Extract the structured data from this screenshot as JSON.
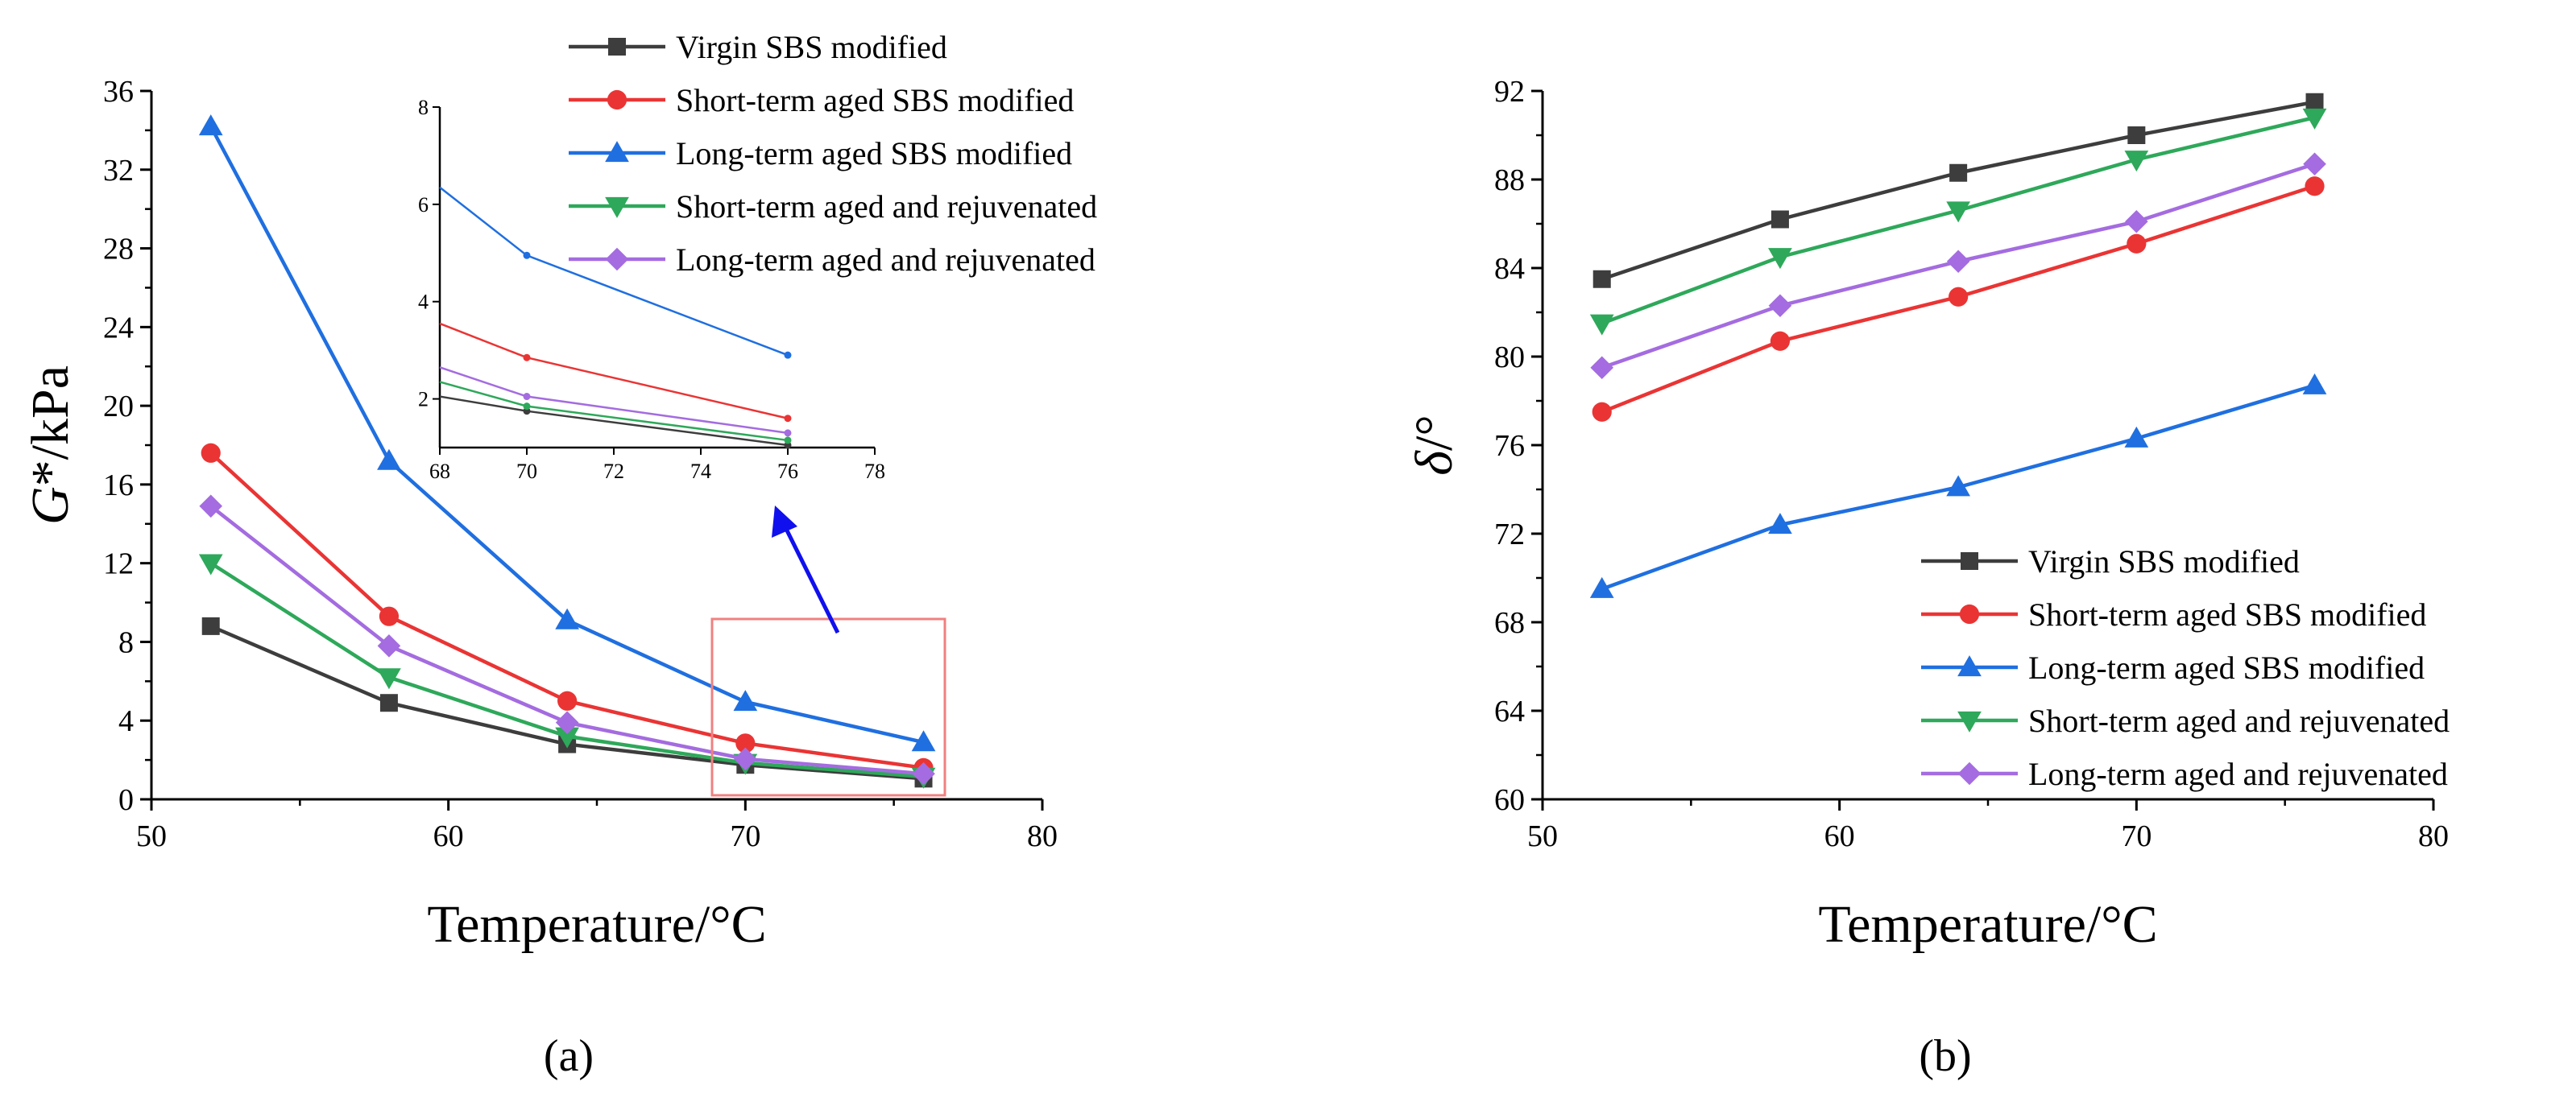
{
  "chart_data": [
    {
      "id": "a",
      "type": "line",
      "panel_label": "(a)",
      "xlabel": "Temperature/°C",
      "ylabel_italic": "G",
      "ylabel_rest": "*/kPa",
      "xlim": [
        50,
        80
      ],
      "ylim": [
        0,
        36
      ],
      "xticks": [
        50,
        60,
        70,
        80
      ],
      "yticks": [
        0,
        4,
        8,
        12,
        16,
        20,
        24,
        28,
        32,
        36
      ],
      "x": [
        52,
        58,
        64,
        70,
        76
      ],
      "legend_position": "top-right",
      "series": [
        {
          "name": "Virgin SBS modified",
          "color": "#3d3d3d",
          "marker": "square",
          "values": [
            8.8,
            4.9,
            2.8,
            1.75,
            1.05
          ]
        },
        {
          "name": "Short-term aged SBS modified",
          "color": "#ea3434",
          "marker": "circle",
          "values": [
            17.6,
            9.3,
            5.0,
            2.85,
            1.6
          ]
        },
        {
          "name": "Long-term aged SBS modified",
          "color": "#1f6fe0",
          "marker": "triangle-up",
          "values": [
            34.2,
            17.2,
            9.1,
            4.95,
            2.9
          ]
        },
        {
          "name": "Short-term aged and rejuvenated",
          "color": "#2ea85a",
          "marker": "triangle-down",
          "values": [
            12.0,
            6.2,
            3.2,
            1.85,
            1.15
          ]
        },
        {
          "name": "Long-term aged and rejuvenated",
          "color": "#a46ce0",
          "marker": "diamond",
          "values": [
            14.9,
            7.8,
            3.9,
            2.05,
            1.3
          ]
        }
      ],
      "inset": {
        "xlim": [
          68,
          78
        ],
        "ylim": [
          1,
          8
        ],
        "xticks": [
          68,
          70,
          72,
          74,
          76,
          78
        ],
        "yticks": [
          2,
          4,
          6,
          8
        ],
        "x": [
          68,
          70,
          76
        ],
        "series": [
          {
            "color": "#3d3d3d",
            "values": [
              2.05,
              1.75,
              1.05
            ]
          },
          {
            "color": "#ea3434",
            "values": [
              3.55,
              2.85,
              1.6
            ]
          },
          {
            "color": "#1f6fe0",
            "values": [
              6.35,
              4.95,
              2.9
            ]
          },
          {
            "color": "#2ea85a",
            "values": [
              2.35,
              1.85,
              1.15
            ]
          },
          {
            "color": "#a46ce0",
            "values": [
              2.65,
              2.05,
              1.3
            ]
          }
        ]
      }
    },
    {
      "id": "b",
      "type": "line",
      "panel_label": "(b)",
      "xlabel": "Temperature/°C",
      "ylabel_italic": "δ",
      "ylabel_rest": "/°",
      "xlim": [
        50,
        80
      ],
      "ylim": [
        60,
        92
      ],
      "xticks": [
        50,
        60,
        70,
        80
      ],
      "yticks": [
        60,
        64,
        68,
        72,
        76,
        80,
        84,
        88,
        92
      ],
      "x": [
        52,
        58,
        64,
        70,
        76
      ],
      "legend_position": "bottom-right",
      "series": [
        {
          "name": "Virgin SBS modified",
          "color": "#3d3d3d",
          "marker": "square",
          "values": [
            83.5,
            86.2,
            88.3,
            90.0,
            91.5
          ]
        },
        {
          "name": "Short-term aged SBS modified",
          "color": "#ea3434",
          "marker": "circle",
          "values": [
            77.5,
            80.7,
            82.7,
            85.1,
            87.7
          ]
        },
        {
          "name": "Long-term aged SBS modified",
          "color": "#1f6fe0",
          "marker": "triangle-up",
          "values": [
            69.5,
            72.4,
            74.1,
            76.3,
            78.7
          ]
        },
        {
          "name": "Short-term aged and rejuvenated",
          "color": "#2ea85a",
          "marker": "triangle-down",
          "values": [
            81.5,
            84.5,
            86.6,
            88.9,
            90.8
          ]
        },
        {
          "name": "Long-term aged and rejuvenated",
          "color": "#a46ce0",
          "marker": "diamond",
          "values": [
            79.5,
            82.3,
            84.3,
            86.1,
            88.7
          ]
        }
      ]
    }
  ]
}
